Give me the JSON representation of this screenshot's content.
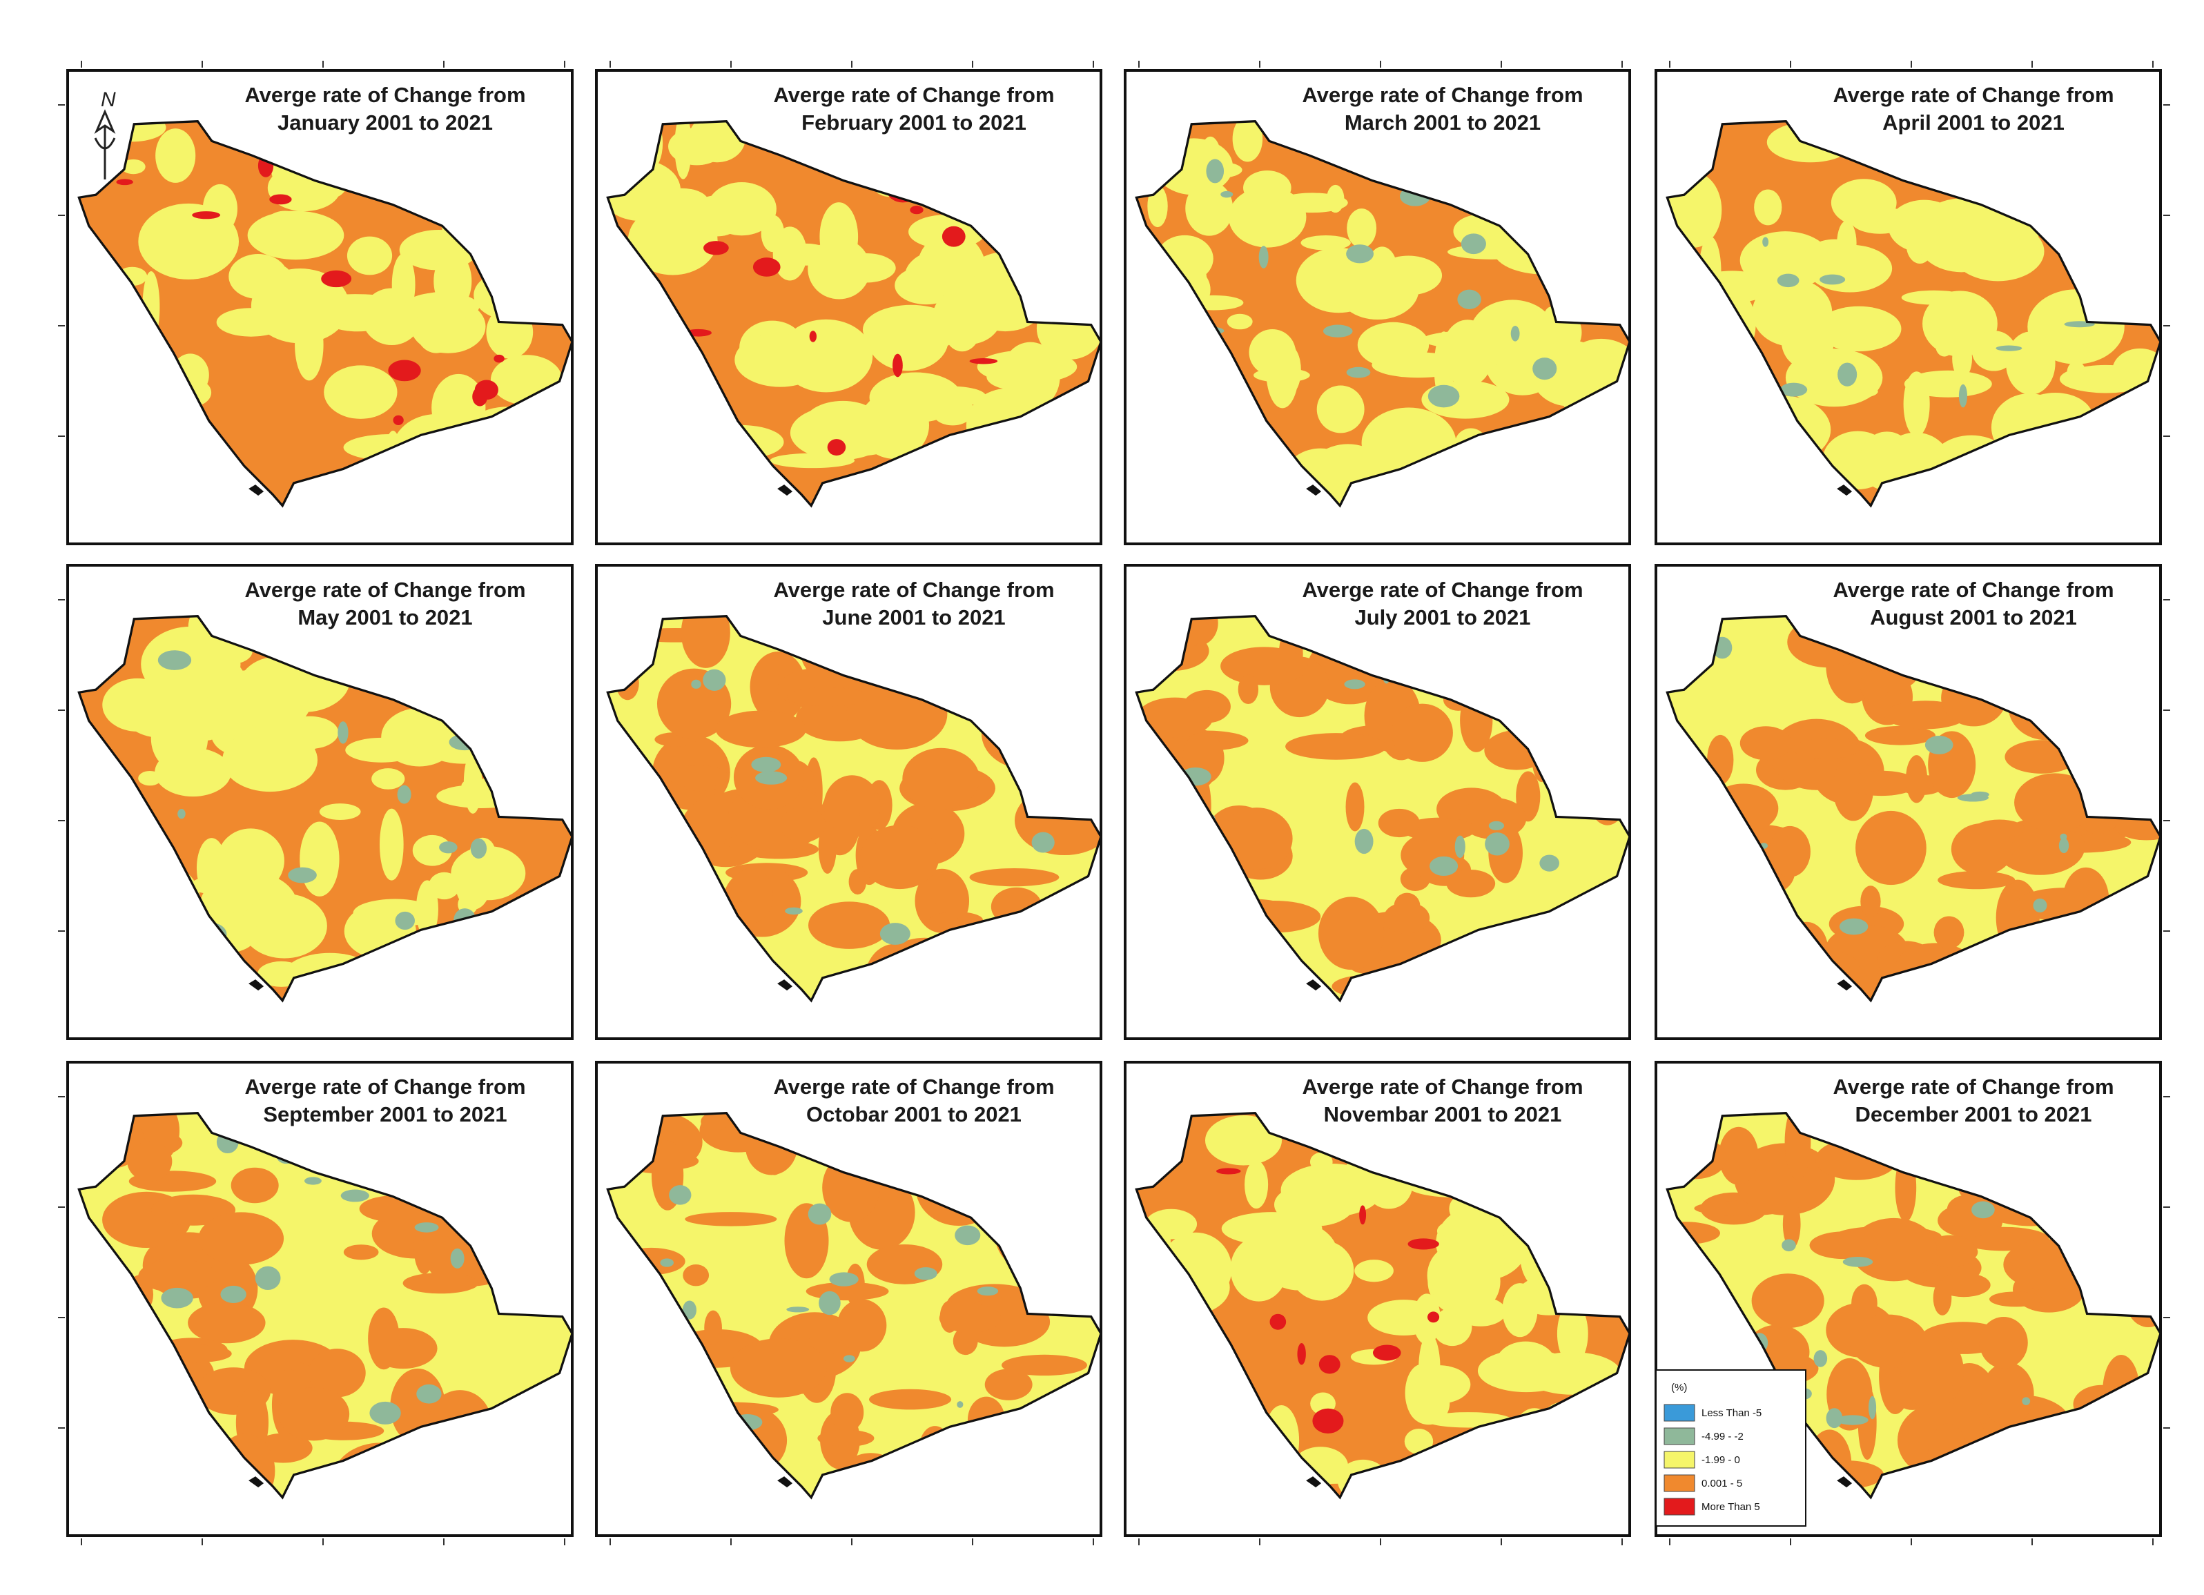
{
  "panels": [
    {
      "title_line1": "Averge rate of  Change  from",
      "title_line2": "January 2001 to 2021"
    },
    {
      "title_line1": "Averge rate of Change from",
      "title_line2": "February 2001 to 2021"
    },
    {
      "title_line1": "Averge rate of Change from",
      "title_line2": "March 2001 to 2021"
    },
    {
      "title_line1": "Averge rate of  Change from",
      "title_line2": "April 2001 to 2021"
    },
    {
      "title_line1": "Averge rate of Change from",
      "title_line2": "May 2001 to 2021"
    },
    {
      "title_line1": "Averge rate of Change from",
      "title_line2": "June 2001 to 2021"
    },
    {
      "title_line1": "Averge rate of  Change from",
      "title_line2": "July 2001 to 2021"
    },
    {
      "title_line1": "Averge rate of Change from",
      "title_line2": "August 2001 to 2021"
    },
    {
      "title_line1": "Averge rate of  Change from",
      "title_line2": "September 2001 to 2021"
    },
    {
      "title_line1": "Averge rate of Change from",
      "title_line2": "Octobar 2001 to 2021"
    },
    {
      "title_line1": "Averge rate of  Change from",
      "title_line2": "Novembar 2001 to 2021"
    },
    {
      "title_line1": "Averge rate of  Change from",
      "title_line2": "December 2001 to 2021"
    }
  ],
  "north_arrow": "N",
  "legend": {
    "title": "(%)",
    "items": [
      {
        "label": "Less Than -5",
        "color": "#3a9ad9"
      },
      {
        "label": "-4.99 - -2",
        "color": "#8fb89a"
      },
      {
        "label": "-1.99 - 0",
        "color": "#f5f56a"
      },
      {
        "label": "0.001 - 5",
        "color": "#f0892e"
      },
      {
        "label": "More Than 5",
        "color": "#e31a1c"
      }
    ]
  }
}
